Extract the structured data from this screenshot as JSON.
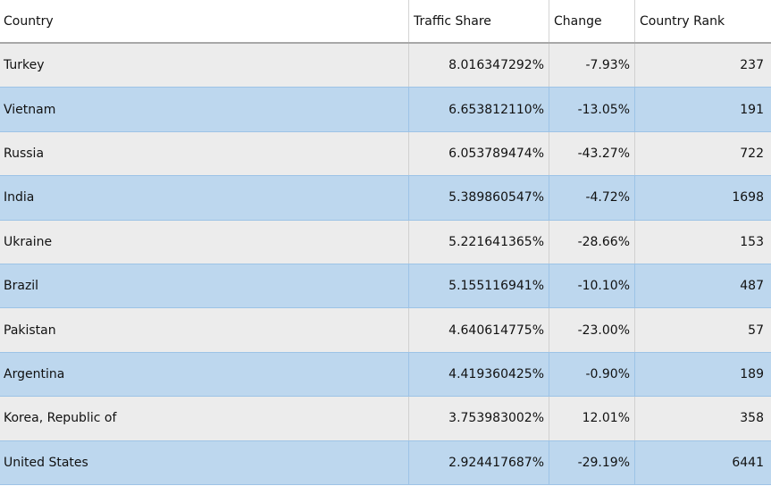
{
  "headers": {
    "country": "Country",
    "traffic_share": "Traffic Share",
    "change": "Change",
    "country_rank": "Country Rank"
  },
  "rows": [
    {
      "country": "Turkey",
      "traffic_share": "8.016347292%",
      "change": "-7.93%",
      "rank": "237"
    },
    {
      "country": "Vietnam",
      "traffic_share": "6.653812110%",
      "change": "-13.05%",
      "rank": "191"
    },
    {
      "country": "Russia",
      "traffic_share": "6.053789474%",
      "change": "-43.27%",
      "rank": "722"
    },
    {
      "country": "India",
      "traffic_share": "5.389860547%",
      "change": "-4.72%",
      "rank": "1698"
    },
    {
      "country": "Ukraine",
      "traffic_share": "5.221641365%",
      "change": "-28.66%",
      "rank": "153"
    },
    {
      "country": "Brazil",
      "traffic_share": "5.155116941%",
      "change": "-10.10%",
      "rank": "487"
    },
    {
      "country": "Pakistan",
      "traffic_share": "4.640614775%",
      "change": "-23.00%",
      "rank": "57"
    },
    {
      "country": "Argentina",
      "traffic_share": "4.419360425%",
      "change": "-0.90%",
      "rank": "189"
    },
    {
      "country": "Korea, Republic of",
      "traffic_share": "3.753983002%",
      "change": "12.01%",
      "rank": "358"
    },
    {
      "country": "United States",
      "traffic_share": "2.924417687%",
      "change": "-29.19%",
      "rank": "6441"
    }
  ]
}
